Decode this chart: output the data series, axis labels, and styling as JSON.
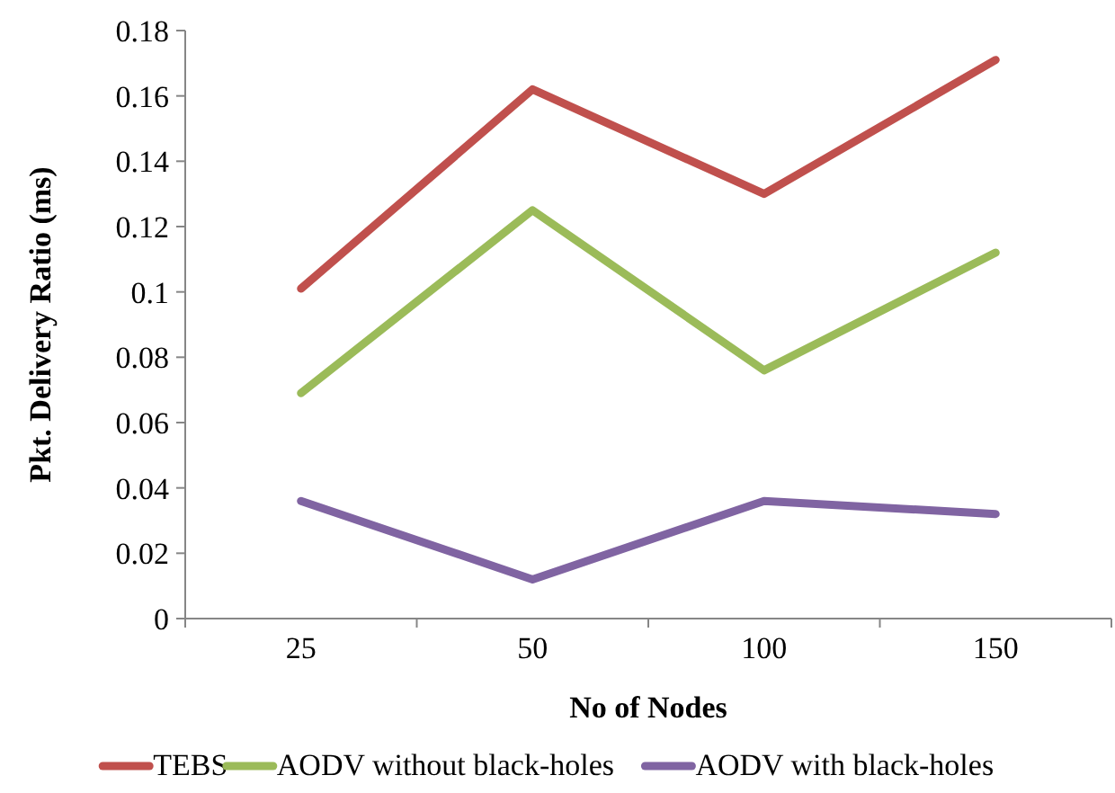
{
  "chart_data": {
    "type": "line",
    "xlabel": "No of Nodes",
    "ylabel": "Pkt. Delivery Ratio (ms)",
    "categories": [
      "25",
      "50",
      "100",
      "150"
    ],
    "series": [
      {
        "name": "TEBS",
        "color": "#c0504d",
        "values": [
          0.101,
          0.162,
          0.13,
          0.171
        ]
      },
      {
        "name": "AODV without black-holes",
        "color": "#9bbb59",
        "values": [
          0.069,
          0.125,
          0.076,
          0.112
        ]
      },
      {
        "name": "AODV with black-holes",
        "color": "#8064a2",
        "values": [
          0.036,
          0.012,
          0.036,
          0.032
        ]
      }
    ],
    "ylim": [
      0,
      0.18
    ],
    "yticks": [
      0,
      0.02,
      0.04,
      0.06,
      0.08,
      {
        "value": 0.1,
        "label": "0.1"
      },
      0.12,
      0.14,
      0.16,
      0.18
    ],
    "grid": false,
    "legend": "bottom",
    "marker": "none",
    "line_style": "solid"
  }
}
